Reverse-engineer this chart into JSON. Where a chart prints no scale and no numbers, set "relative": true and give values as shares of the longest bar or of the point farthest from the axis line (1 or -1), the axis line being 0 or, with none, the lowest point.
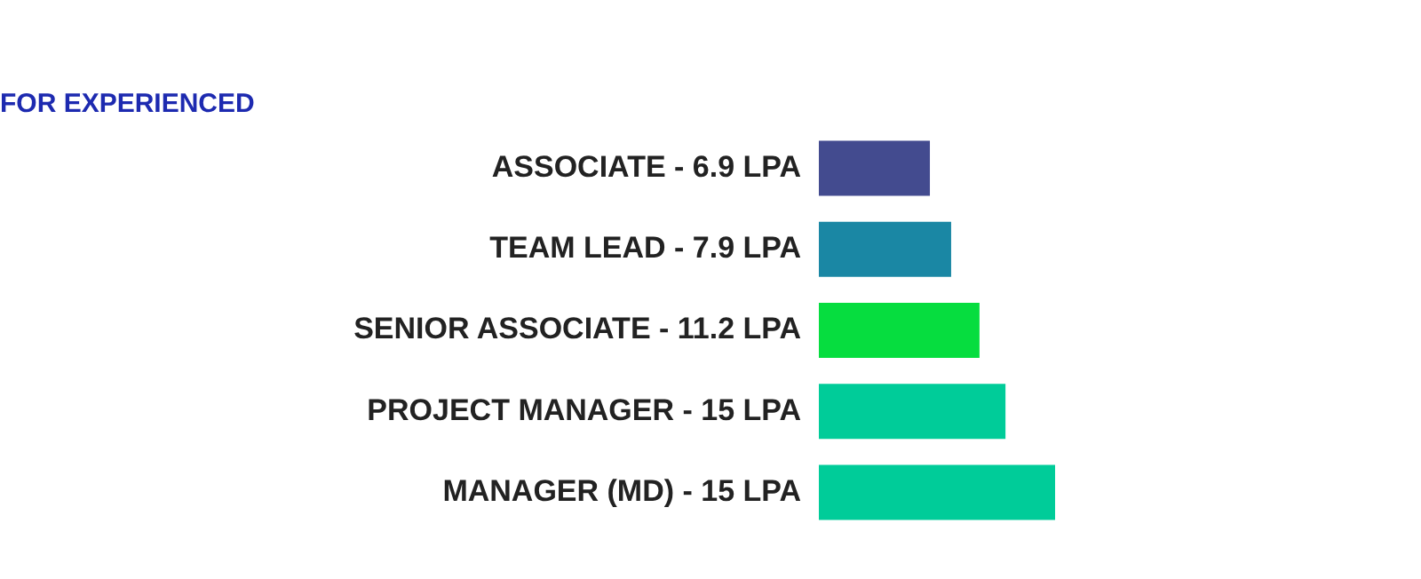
{
  "chart_data": {
    "type": "bar",
    "orientation": "horizontal",
    "relative": true,
    "title": "FOR EXPERIENCED",
    "categories": [
      "ASSOCIATE - 6.9 LPA",
      "TEAM LEAD - 7.9 LPA",
      "SENIOR ASSOCIATE - 11.2 LPA",
      "PROJECT MANAGER - 15 LPA",
      "MANAGER (MD) - 15 LPA"
    ],
    "values": [
      0.47,
      0.56,
      0.68,
      0.79,
      1
    ],
    "colors": [
      "#434b8f",
      "#1a87a4",
      "#06dd3f",
      "#00cc99",
      "#00cc99"
    ],
    "grid": false,
    "legend": false
  }
}
